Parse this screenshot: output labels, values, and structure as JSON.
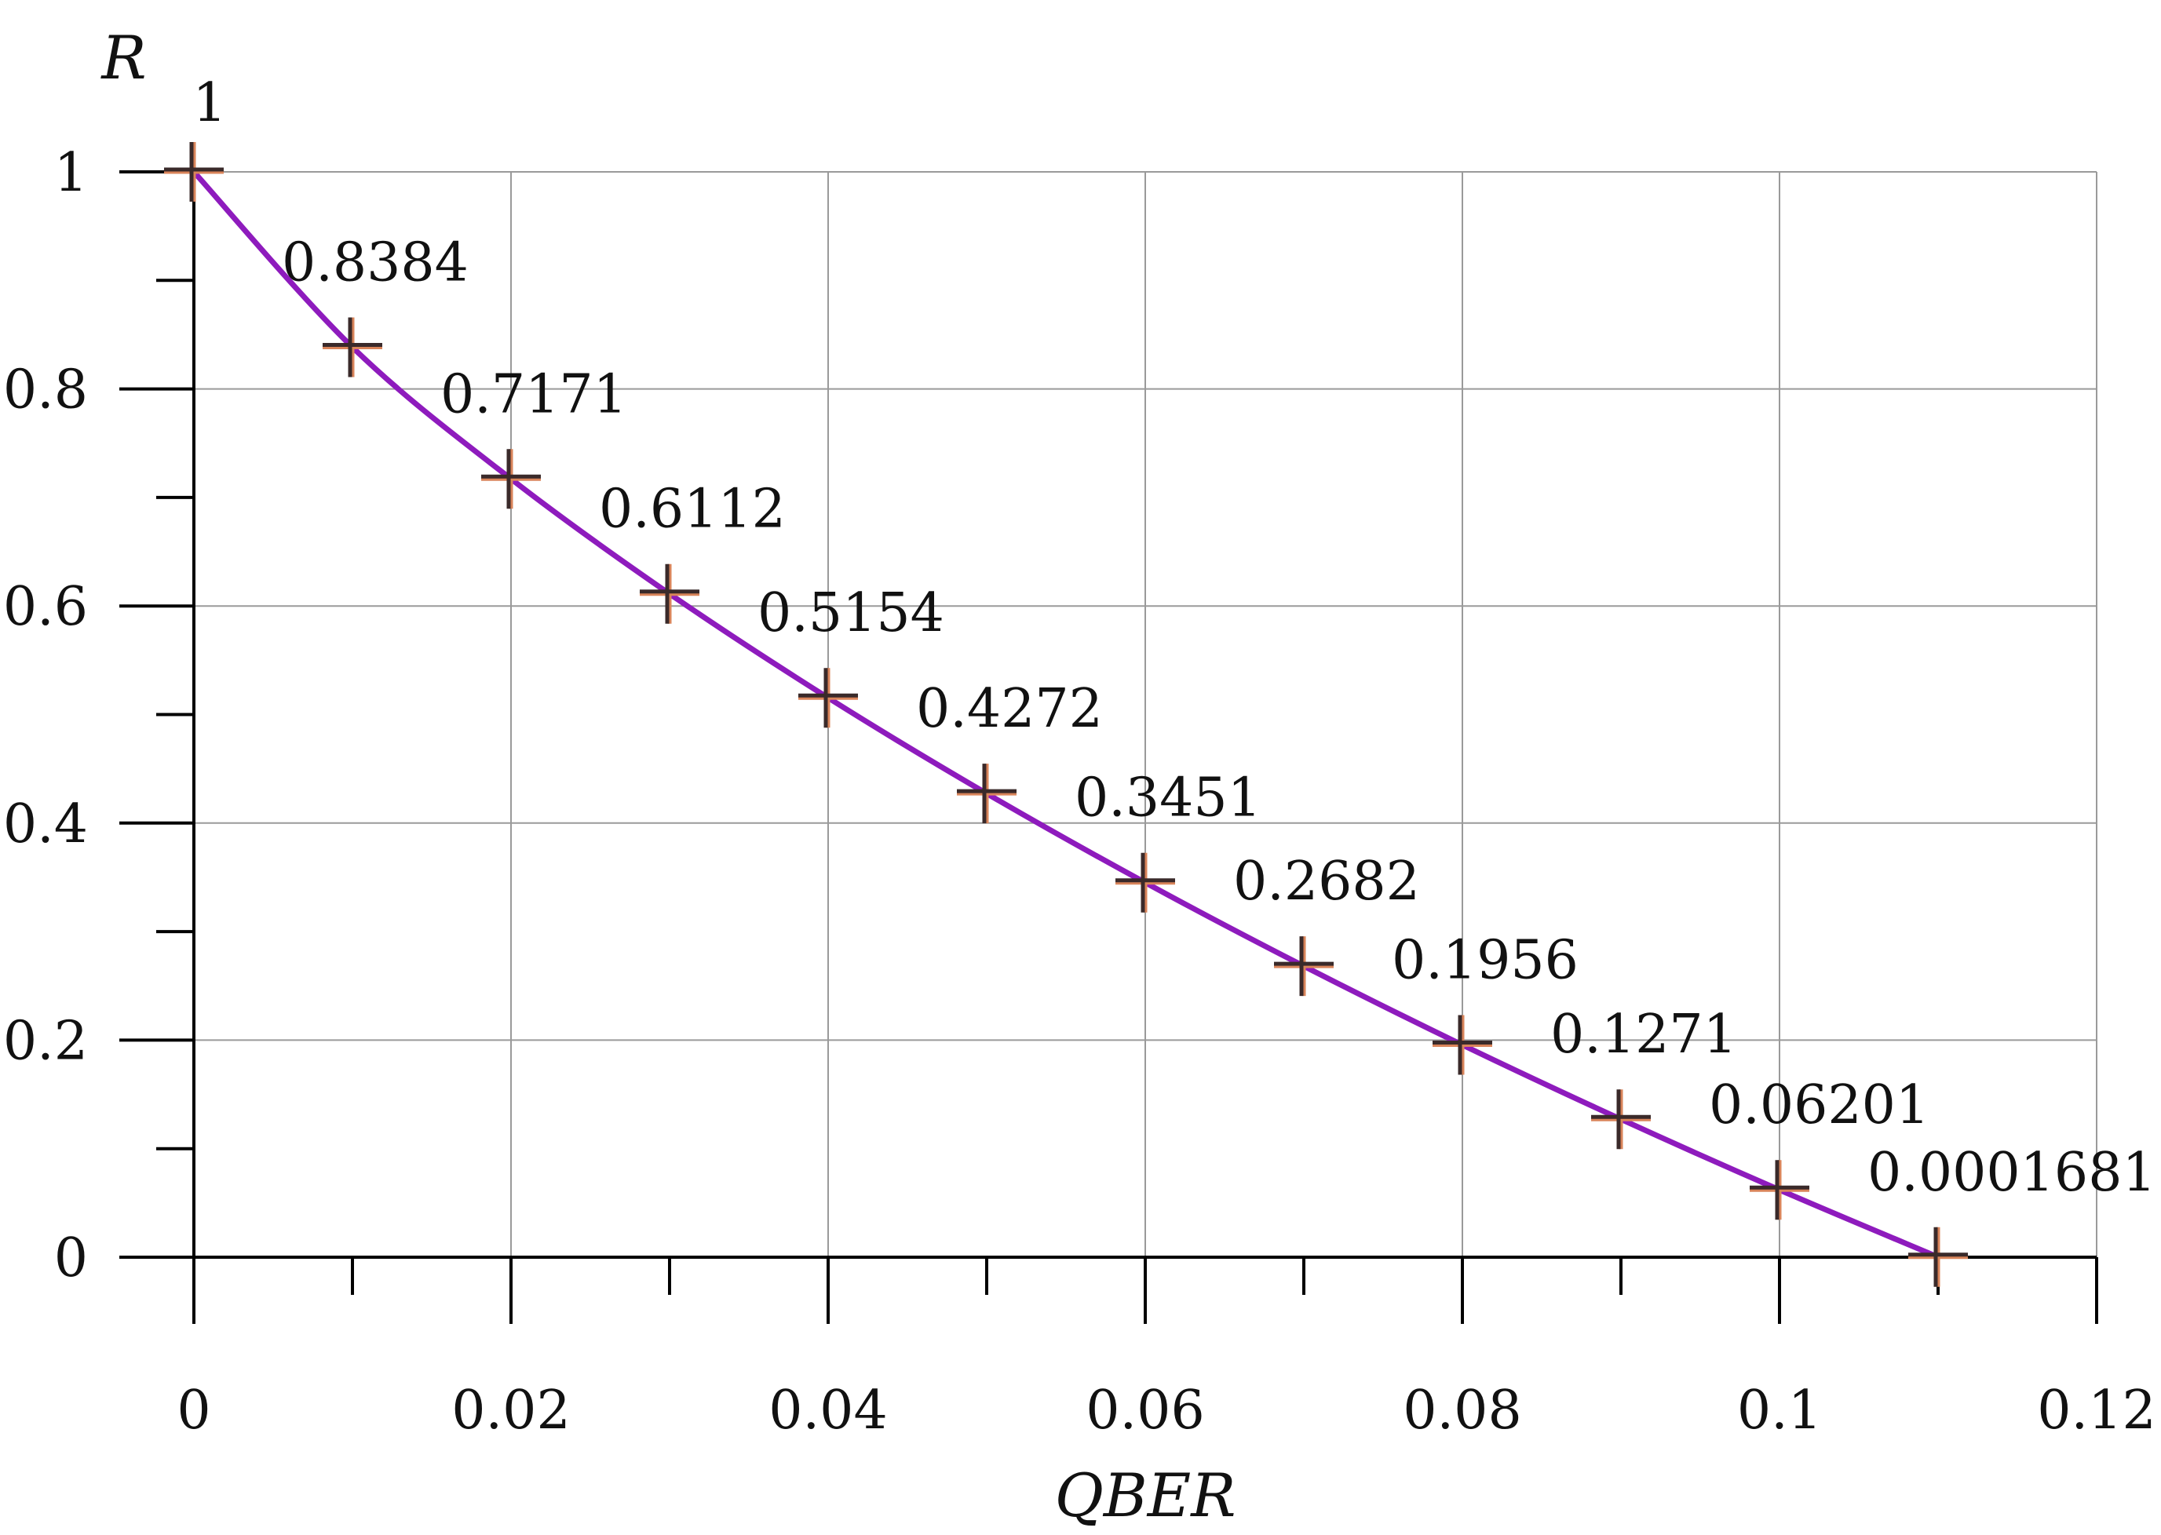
{
  "chart_data": {
    "type": "line",
    "xlabel": "QBER",
    "ylabel": "R",
    "xlim": [
      0,
      0.12
    ],
    "ylim": [
      0,
      1
    ],
    "x_ticks": [
      0,
      0.02,
      0.04,
      0.06,
      0.08,
      0.1,
      0.12
    ],
    "x_tick_labels": [
      "0",
      "0.02",
      "0.04",
      "0.06",
      "0.08",
      "0.1",
      "0.12"
    ],
    "x_minor_ticks": [
      0.01,
      0.03,
      0.05,
      0.07,
      0.09,
      0.11
    ],
    "y_ticks": [
      0,
      0.2,
      0.4,
      0.6,
      0.8,
      1
    ],
    "y_tick_labels": [
      "0",
      "0.2",
      "0.4",
      "0.6",
      "0.8",
      "1"
    ],
    "y_minor_ticks": [
      0.1,
      0.3,
      0.5,
      0.7,
      0.9
    ],
    "grid": true,
    "series": [
      {
        "x": [
          0,
          0.01,
          0.02,
          0.03,
          0.04,
          0.05,
          0.06,
          0.07,
          0.08,
          0.09,
          0.1,
          0.11
        ],
        "values": [
          1,
          0.8384,
          0.7171,
          0.6112,
          0.5154,
          0.4272,
          0.3451,
          0.2682,
          0.1956,
          0.1271,
          0.06201,
          0.0001681
        ],
        "data_labels": [
          "1",
          "0.8384",
          "0.7171",
          "0.6112",
          "0.5154",
          "0.4272",
          "0.3451",
          "0.2682",
          "0.1956",
          "0.1271",
          "0.06201",
          "0.0001681"
        ],
        "line_color": "#8e1bbd",
        "marker": "plus",
        "marker_color": "#d9845a"
      }
    ]
  }
}
